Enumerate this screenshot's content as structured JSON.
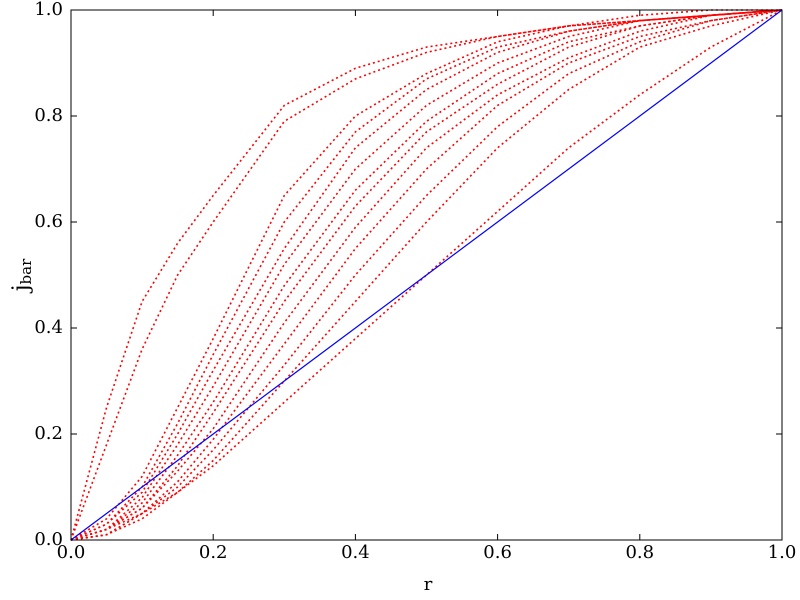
{
  "chart_data": {
    "type": "line",
    "xlabel": "r",
    "ylabel": {
      "base": "j",
      "sub": "bar"
    },
    "x": [
      0,
      0.05,
      0.1,
      0.15,
      0.2,
      0.3,
      0.4,
      0.5,
      0.6,
      0.7,
      0.8,
      0.9,
      1.0
    ],
    "series": [
      {
        "color": "#ff0000",
        "style": "dotted",
        "values": [
          0,
          0.25,
          0.45,
          0.56,
          0.65,
          0.82,
          0.89,
          0.93,
          0.95,
          0.97,
          0.98,
          0.99,
          1
        ]
      },
      {
        "color": "#ff0000",
        "style": "dotted",
        "values": [
          0,
          0.18,
          0.36,
          0.5,
          0.6,
          0.79,
          0.87,
          0.92,
          0.95,
          0.97,
          0.98,
          0.99,
          1
        ]
      },
      {
        "color": "#ff0000",
        "style": "dotted",
        "values": [
          0,
          0.04,
          0.12,
          0.25,
          0.38,
          0.65,
          0.8,
          0.88,
          0.94,
          0.97,
          0.99,
          1,
          1
        ]
      },
      {
        "color": "#ff0000",
        "style": "dotted",
        "values": [
          0,
          0.03,
          0.1,
          0.22,
          0.35,
          0.6,
          0.77,
          0.87,
          0.93,
          0.96,
          0.98,
          0.99,
          1
        ]
      },
      {
        "color": "#ff0000",
        "style": "dotted",
        "values": [
          0,
          0.03,
          0.09,
          0.2,
          0.32,
          0.55,
          0.74,
          0.85,
          0.92,
          0.96,
          0.98,
          0.99,
          1
        ]
      },
      {
        "color": "#ff0000",
        "style": "dotted",
        "values": [
          0,
          0.02,
          0.08,
          0.18,
          0.29,
          0.52,
          0.7,
          0.82,
          0.9,
          0.95,
          0.98,
          0.99,
          1
        ]
      },
      {
        "color": "#ff0000",
        "style": "dotted",
        "values": [
          0,
          0.02,
          0.07,
          0.16,
          0.26,
          0.48,
          0.66,
          0.79,
          0.88,
          0.94,
          0.97,
          0.99,
          1
        ]
      },
      {
        "color": "#ff0000",
        "style": "dotted",
        "values": [
          0,
          0.02,
          0.06,
          0.14,
          0.24,
          0.45,
          0.63,
          0.77,
          0.86,
          0.93,
          0.97,
          0.99,
          1
        ]
      },
      {
        "color": "#ff0000",
        "style": "dotted",
        "values": [
          0,
          0.02,
          0.06,
          0.13,
          0.21,
          0.41,
          0.59,
          0.74,
          0.84,
          0.91,
          0.96,
          0.99,
          1
        ]
      },
      {
        "color": "#ff0000",
        "style": "dotted",
        "values": [
          0,
          0.01,
          0.05,
          0.11,
          0.19,
          0.37,
          0.55,
          0.7,
          0.82,
          0.9,
          0.95,
          0.98,
          1
        ]
      },
      {
        "color": "#ff0000",
        "style": "dotted",
        "values": [
          0,
          0.01,
          0.05,
          0.1,
          0.17,
          0.33,
          0.5,
          0.65,
          0.78,
          0.88,
          0.94,
          0.98,
          1
        ]
      },
      {
        "color": "#ff0000",
        "style": "dotted",
        "values": [
          0,
          0.01,
          0.04,
          0.09,
          0.15,
          0.3,
          0.45,
          0.6,
          0.74,
          0.85,
          0.93,
          0.97,
          1
        ]
      },
      {
        "color": "#ff0000",
        "style": "dotted",
        "values": [
          0,
          0.02,
          0.05,
          0.09,
          0.14,
          0.26,
          0.38,
          0.5,
          0.62,
          0.74,
          0.84,
          0.93,
          1
        ]
      },
      {
        "color": "#0000ff",
        "style": "solid",
        "values": [
          0,
          0.05,
          0.1,
          0.15,
          0.2,
          0.3,
          0.4,
          0.5,
          0.6,
          0.7,
          0.8,
          0.9,
          1.0
        ]
      }
    ],
    "xlim": [
      0,
      1
    ],
    "ylim": [
      0,
      1
    ],
    "xticks": [
      {
        "value": 0,
        "label": "0.0"
      },
      0.2,
      0.4,
      0.6,
      0.8,
      {
        "value": 1,
        "label": "1.0"
      }
    ],
    "yticks": [
      {
        "value": 0,
        "label": "0.0"
      },
      0.2,
      0.4,
      0.6,
      0.8,
      {
        "value": 1,
        "label": "1.0"
      }
    ],
    "grid": false
  }
}
